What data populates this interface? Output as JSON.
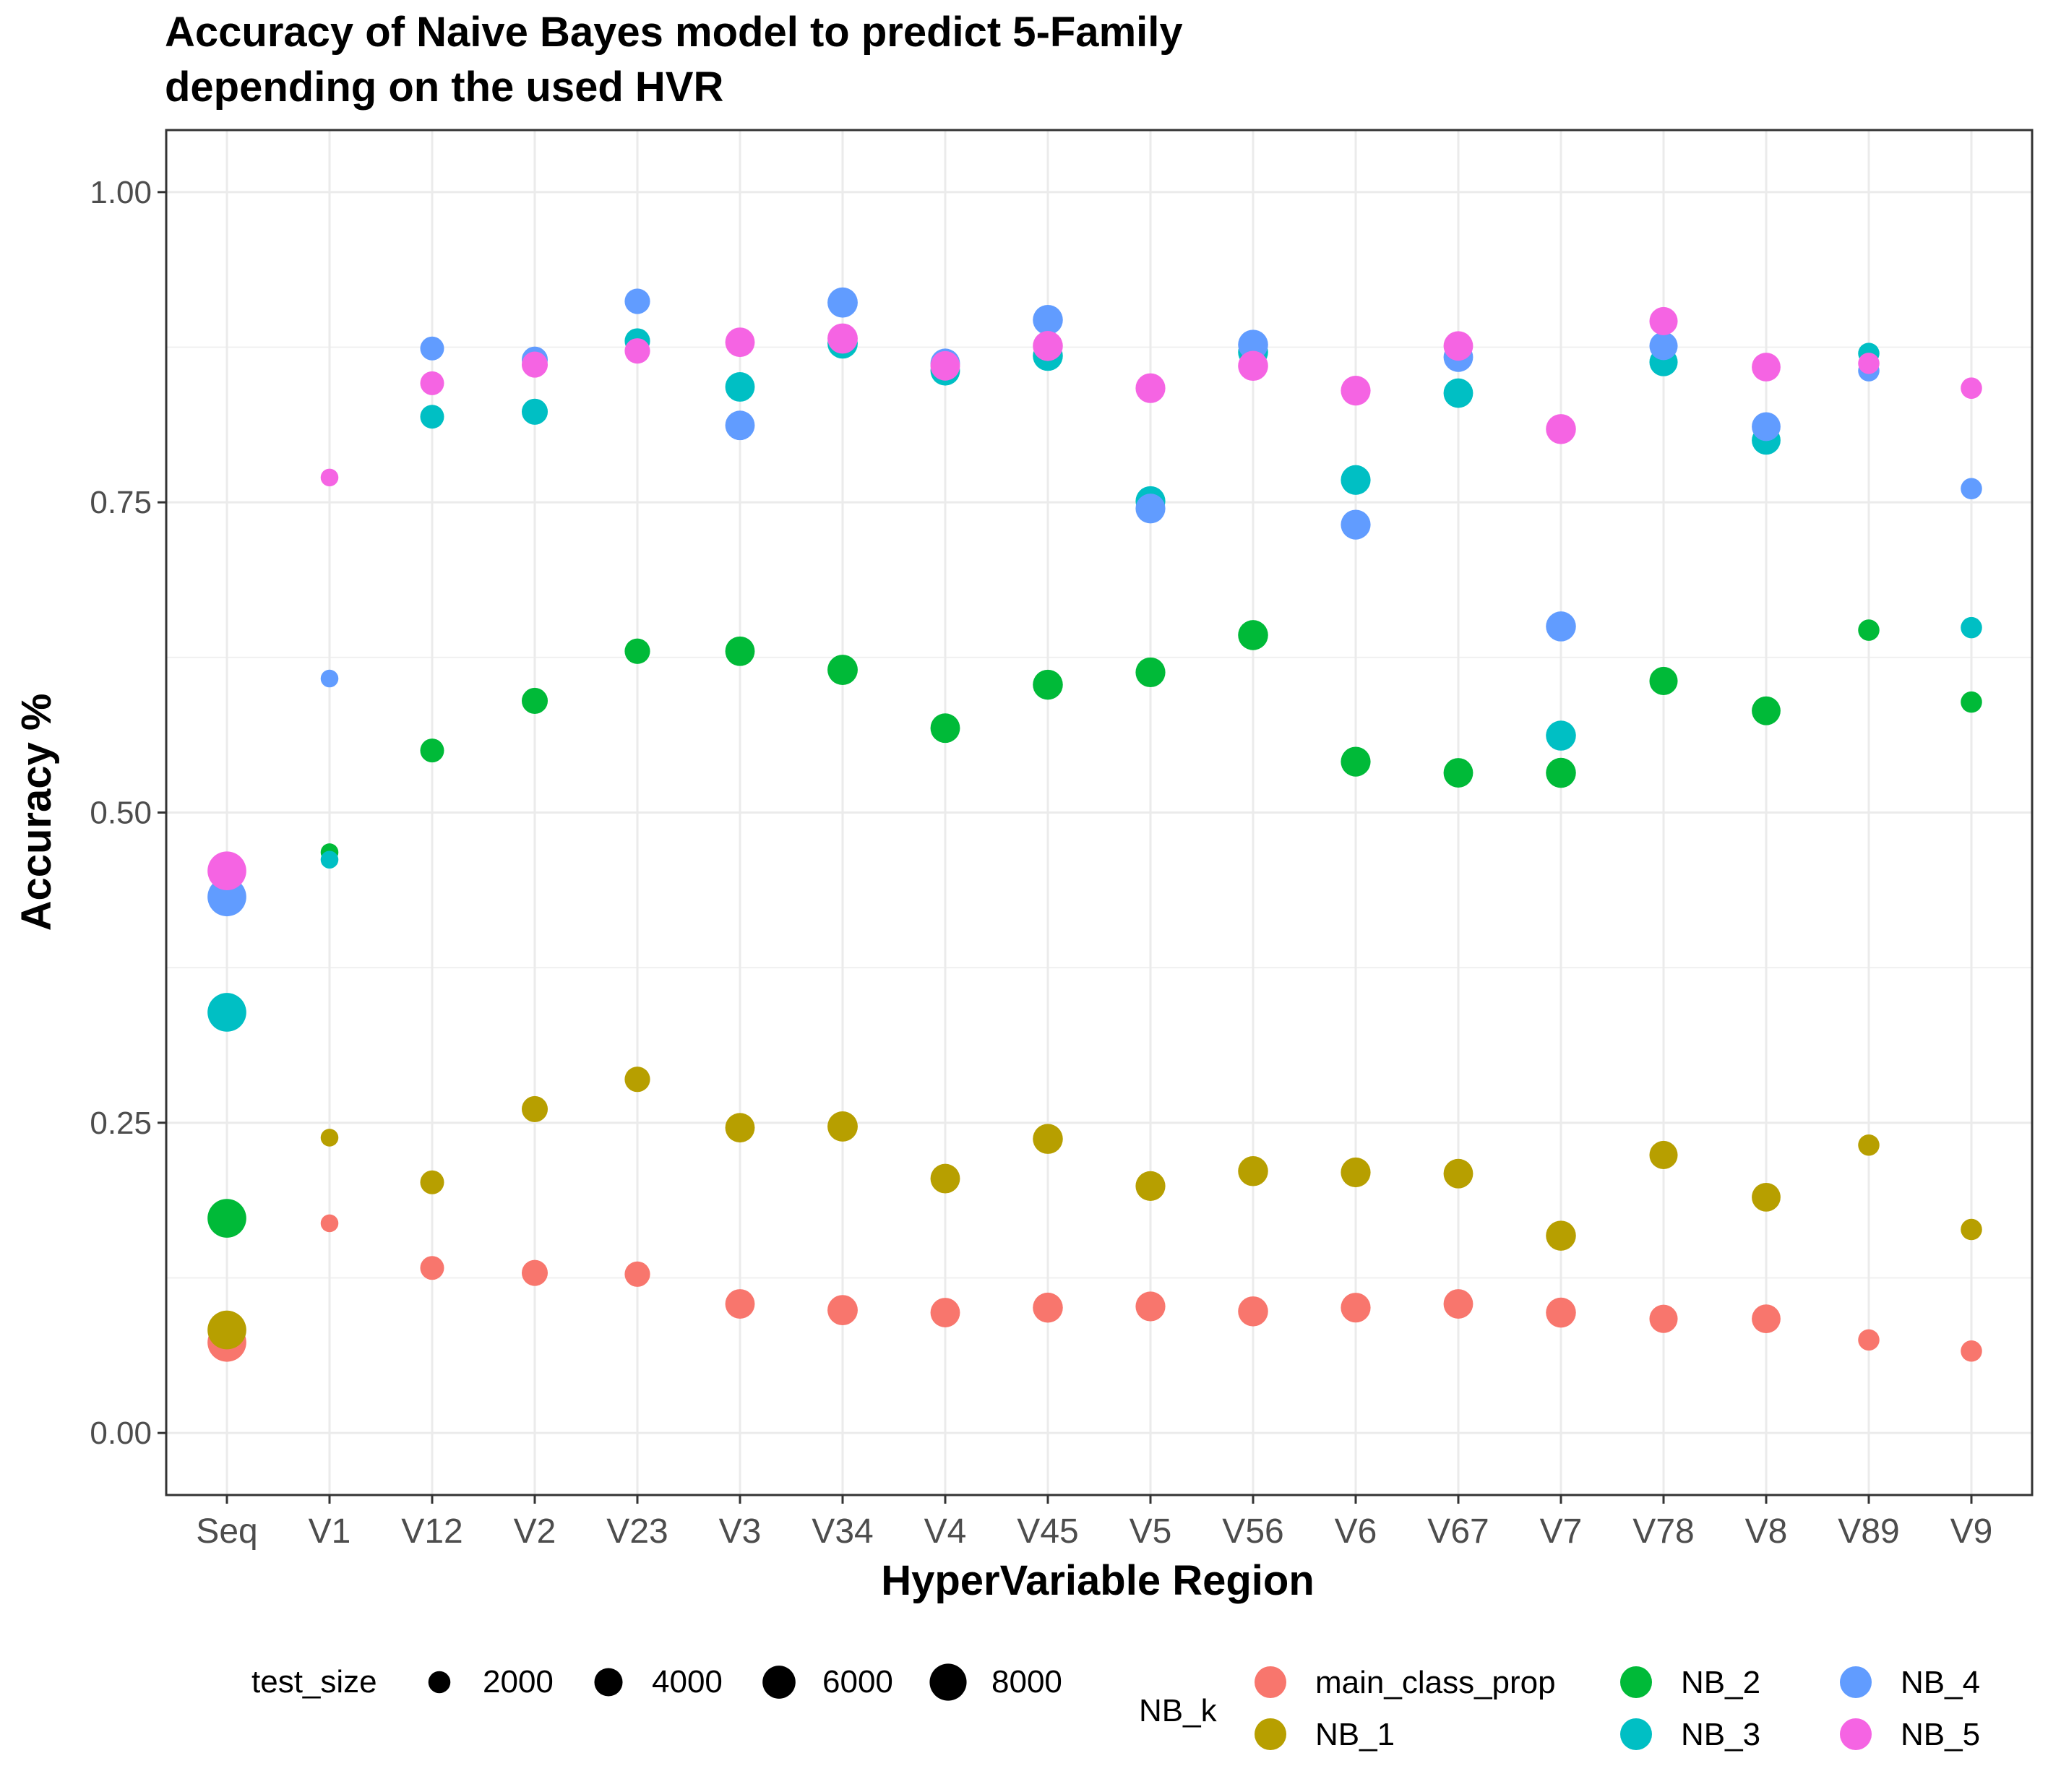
{
  "chart_data": {
    "type": "scatter",
    "title_line1": "Accuracy of Naive Bayes model to predict 5-Family",
    "title_line2": "depending on the used HVR",
    "xlabel": "HyperVariable Region",
    "ylabel": "Accuracy %",
    "ylim": [
      -0.05,
      1.05
    ],
    "y_ticks": [
      "0.00",
      "0.25",
      "0.50",
      "0.75",
      "1.00"
    ],
    "y_tick_values": [
      0,
      0.25,
      0.5,
      0.75,
      1.0
    ],
    "grid": true,
    "categories": [
      "Seq",
      "V1",
      "V12",
      "V2",
      "V23",
      "V3",
      "V34",
      "V4",
      "V45",
      "V5",
      "V56",
      "V6",
      "V67",
      "V7",
      "V78",
      "V8",
      "V89",
      "V9"
    ],
    "test_size": [
      9000,
      1000,
      2500,
      3200,
      3000,
      4500,
      4800,
      4500,
      4700,
      4600,
      4700,
      4600,
      4500,
      4700,
      4000,
      4200,
      1800,
      1800
    ],
    "size_legend": {
      "title": "test_size",
      "labels": [
        "2000",
        "4000",
        "6000",
        "8000"
      ],
      "values": [
        2000,
        4000,
        6000,
        8000
      ]
    },
    "color_legend": {
      "title": "NB_k",
      "placement": "bottom"
    },
    "series": [
      {
        "name": "main_class_prop",
        "color": "#F8766D",
        "values": [
          0.073,
          0.169,
          0.133,
          0.129,
          0.128,
          0.104,
          0.099,
          0.097,
          0.101,
          0.102,
          0.098,
          0.101,
          0.104,
          0.097,
          0.092,
          0.092,
          0.075,
          0.066
        ]
      },
      {
        "name": "NB_1",
        "color": "#B79F00",
        "values": [
          0.083,
          0.238,
          0.202,
          0.261,
          0.285,
          0.246,
          0.247,
          0.205,
          0.237,
          0.199,
          0.211,
          0.21,
          0.209,
          0.159,
          0.224,
          0.19,
          0.232,
          0.164
        ]
      },
      {
        "name": "NB_2",
        "color": "#00BA38",
        "values": [
          0.173,
          0.468,
          0.55,
          0.59,
          0.63,
          0.63,
          0.615,
          0.568,
          0.603,
          0.613,
          0.643,
          0.541,
          0.532,
          0.532,
          0.606,
          0.582,
          0.647,
          0.589
        ]
      },
      {
        "name": "NB_3",
        "color": "#00BFC4",
        "values": [
          0.339,
          0.462,
          0.819,
          0.823,
          0.88,
          0.843,
          0.878,
          0.856,
          0.868,
          0.751,
          0.871,
          0.768,
          0.838,
          0.562,
          0.863,
          0.8,
          0.87,
          0.649
        ]
      },
      {
        "name": "NB_4",
        "color": "#619CFF",
        "values": [
          0.432,
          0.608,
          0.874,
          0.865,
          0.912,
          0.812,
          0.911,
          0.862,
          0.897,
          0.745,
          0.877,
          0.732,
          0.867,
          0.65,
          0.876,
          0.811,
          0.856,
          0.761
        ]
      },
      {
        "name": "NB_5",
        "color": "#F564E3",
        "values": [
          0.453,
          0.77,
          0.846,
          0.861,
          0.872,
          0.879,
          0.882,
          0.86,
          0.876,
          0.842,
          0.86,
          0.84,
          0.876,
          0.809,
          0.896,
          0.859,
          0.862,
          0.842
        ]
      }
    ]
  }
}
